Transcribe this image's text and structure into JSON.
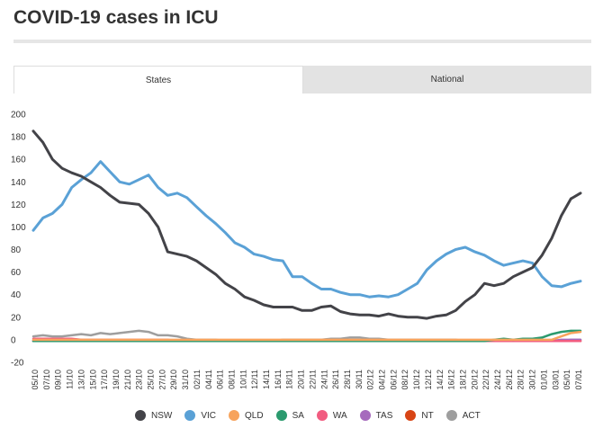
{
  "page": {
    "title": "COVID-19 cases in ICU"
  },
  "tabs": [
    {
      "label": "States",
      "active": true
    },
    {
      "label": "National",
      "active": false
    }
  ],
  "chart_data": {
    "type": "line",
    "title": "COVID-19 cases in ICU",
    "xlabel": "",
    "ylabel": "",
    "ylim": [
      -20,
      200
    ],
    "yticks": [
      -20,
      0,
      20,
      40,
      60,
      80,
      100,
      120,
      140,
      160,
      180,
      200
    ],
    "grid": false,
    "legend_position": "bottom",
    "x_tick_labels": [
      "05/10",
      "07/10",
      "09/10",
      "11/10",
      "13/10",
      "15/10",
      "17/10",
      "19/10",
      "21/10",
      "23/10",
      "25/10",
      "27/10",
      "29/10",
      "31/10",
      "02/11",
      "04/11",
      "06/11",
      "08/11",
      "10/11",
      "12/11",
      "14/11",
      "16/11",
      "18/11",
      "20/11",
      "22/11",
      "24/11",
      "26/11",
      "28/11",
      "30/11",
      "02/12",
      "04/12",
      "06/12",
      "08/12",
      "10/12",
      "12/12",
      "14/12",
      "16/12",
      "18/12",
      "20/12",
      "22/12",
      "24/12",
      "26/12",
      "28/12",
      "30/12",
      "01/01",
      "03/01",
      "05/01",
      "07/01"
    ],
    "series": [
      {
        "name": "NSW",
        "color": "#434348",
        "values": [
          185,
          175,
          160,
          152,
          148,
          145,
          140,
          135,
          128,
          122,
          121,
          120,
          112,
          100,
          78,
          76,
          74,
          70,
          64,
          58,
          50,
          45,
          38,
          35,
          31,
          29,
          29,
          29,
          26,
          26,
          29,
          30,
          25,
          23,
          22,
          22,
          21,
          23,
          21,
          20,
          20,
          19,
          21,
          22,
          26,
          34,
          40,
          50,
          48,
          50,
          56,
          60,
          64,
          75,
          90,
          110,
          125,
          130
        ]
      },
      {
        "name": "VIC",
        "color": "#5aa1d6",
        "values": [
          97,
          108,
          112,
          120,
          135,
          142,
          148,
          158,
          149,
          140,
          138,
          142,
          146,
          135,
          128,
          130,
          126,
          118,
          110,
          103,
          95,
          86,
          82,
          76,
          74,
          71,
          70,
          56,
          56,
          50,
          45,
          45,
          42,
          40,
          40,
          38,
          39,
          38,
          40,
          45,
          50,
          62,
          70,
          76,
          80,
          82,
          78,
          75,
          70,
          66,
          68,
          70,
          68,
          56,
          48,
          47,
          50,
          52
        ]
      },
      {
        "name": "QLD",
        "color": "#f7a35c",
        "values": [
          0,
          0,
          0,
          0,
          0,
          0,
          0,
          0,
          0,
          0,
          0,
          0,
          0,
          0,
          0,
          0,
          0,
          0,
          0,
          0,
          0,
          0,
          0,
          0,
          0,
          0,
          0,
          0,
          0,
          0,
          0,
          0,
          0,
          0,
          0,
          0,
          0,
          0,
          0,
          0,
          0,
          0,
          0,
          0,
          0,
          0,
          0,
          0,
          0,
          0,
          0,
          0,
          0,
          0,
          0,
          3,
          6,
          7
        ]
      },
      {
        "name": "SA",
        "color": "#2b9a6e",
        "values": [
          -1,
          -1,
          -1,
          -1,
          -1,
          -1,
          -1,
          -1,
          -1,
          -1,
          -1,
          -1,
          -1,
          -1,
          -1,
          -1,
          -1,
          -1,
          -1,
          -1,
          -1,
          -1,
          -1,
          -1,
          -1,
          -1,
          -1,
          -1,
          -1,
          -1,
          -1,
          -1,
          -1,
          -1,
          -1,
          -1,
          -1,
          -1,
          -1,
          -1,
          -1,
          -1,
          -1,
          -1,
          -1,
          -1,
          -1,
          -1,
          0,
          1,
          0,
          1,
          1,
          2,
          5,
          7,
          8,
          8
        ]
      },
      {
        "name": "WA",
        "color": "#f15c80",
        "values": [
          1,
          1,
          1,
          1,
          1,
          0,
          0,
          0,
          0,
          0,
          0,
          0,
          0,
          0,
          0,
          -1,
          -1,
          -1,
          -1,
          -1,
          -1,
          -1,
          -1,
          -1,
          -1,
          -1,
          -1,
          -1,
          -1,
          -1,
          -1,
          -1,
          -1,
          -1,
          -1,
          -1,
          -1,
          -1,
          -1,
          -1,
          -1,
          -1,
          -1,
          -1,
          -1,
          -1,
          -1,
          -1,
          -1,
          -1,
          -1,
          -1,
          -1,
          -1,
          -1,
          -1,
          -1,
          -1
        ]
      },
      {
        "name": "TAS",
        "color": "#a66bbd",
        "values": [
          -1,
          -1,
          -1,
          -1,
          -1,
          -1,
          -1,
          -1,
          -1,
          -1,
          -1,
          -1,
          -1,
          -1,
          -1,
          -1,
          -1,
          -1,
          -1,
          -1,
          -1,
          -1,
          -1,
          -1,
          -1,
          -1,
          -1,
          -1,
          -1,
          -1,
          -1,
          -1,
          -1,
          -1,
          -1,
          -1,
          -1,
          -1,
          -1,
          -1,
          -1,
          -1,
          -1,
          -1,
          -1,
          -1,
          -1,
          -1,
          -1,
          -1,
          -1,
          -1,
          -1,
          -1,
          -1,
          0,
          0,
          0
        ]
      },
      {
        "name": "NT",
        "color": "#d84515",
        "values": [
          -1,
          -1,
          -1,
          -1,
          -1,
          -1,
          -1,
          -1,
          -1,
          -1,
          -1,
          -1,
          -1,
          -1,
          -1,
          -1,
          -1,
          -1,
          -1,
          -1,
          -1,
          -1,
          -1,
          -1,
          -1,
          -1,
          -1,
          -1,
          -1,
          -1,
          -1,
          -1,
          -1,
          -1,
          -1,
          -1,
          -1,
          -1,
          -1,
          -1,
          -1,
          -1,
          -1,
          -1,
          -1,
          -1,
          -1,
          -1,
          -1,
          -1,
          -1,
          -1,
          -1,
          -1,
          -1,
          -1,
          -1,
          -1
        ]
      },
      {
        "name": "ACT",
        "color": "#9e9e9e",
        "values": [
          3,
          4,
          3,
          3,
          4,
          5,
          4,
          6,
          5,
          6,
          7,
          8,
          7,
          4,
          4,
          3,
          1,
          0,
          0,
          0,
          -1,
          -1,
          -1,
          -1,
          -1,
          -1,
          0,
          0,
          0,
          0,
          0,
          1,
          1,
          2,
          2,
          1,
          1,
          0,
          0,
          0,
          0,
          0,
          0,
          0,
          0,
          -1,
          -1,
          -1,
          -1,
          -1,
          -1,
          -1,
          -1,
          -1,
          -1,
          -1,
          0,
          0
        ]
      }
    ]
  }
}
